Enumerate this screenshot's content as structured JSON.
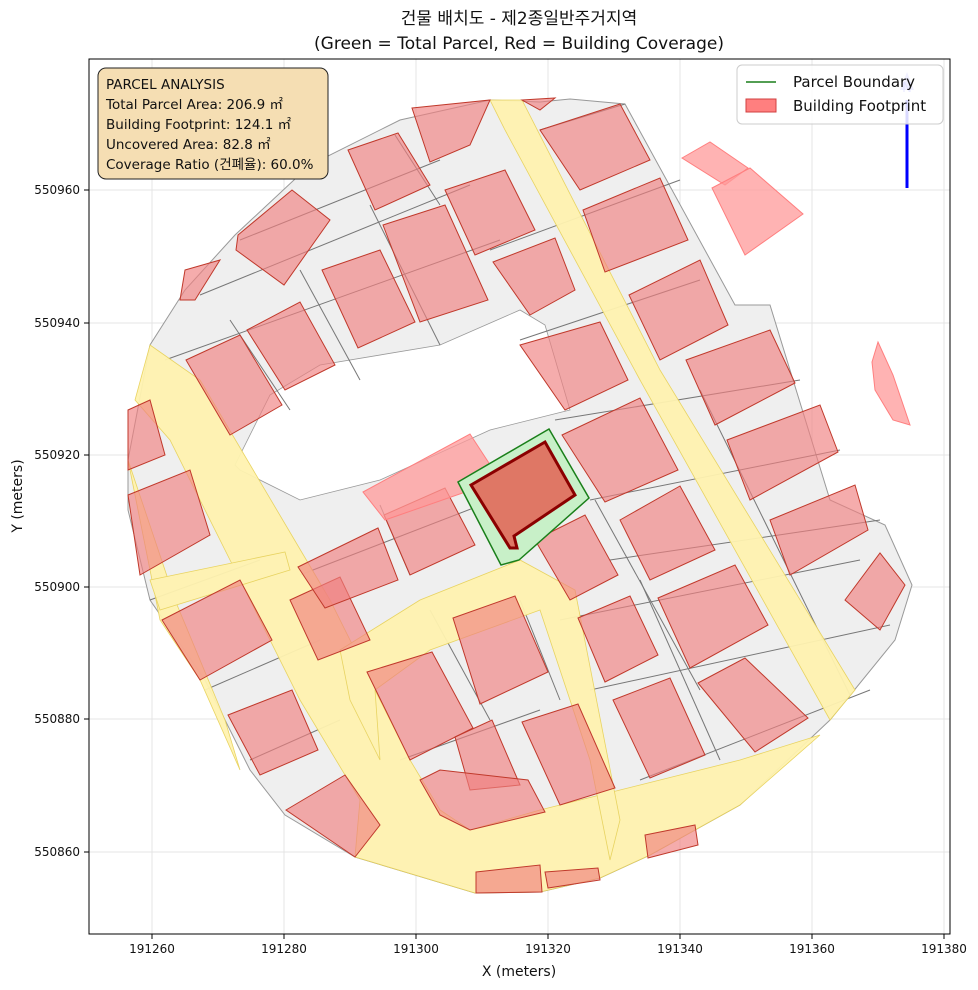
{
  "title": {
    "line1": "건물 배치도 - 제2종일반주거지역",
    "line2": "(Green = Total Parcel, Red = Building Coverage)"
  },
  "axes": {
    "xlabel": "X (meters)",
    "ylabel": "Y (meters)",
    "xlim": [
      191250,
      191380
    ],
    "ylim": [
      550847,
      550982
    ],
    "xticks": [
      "191260",
      "191280",
      "191300",
      "191320",
      "191340",
      "191360",
      "191380"
    ],
    "yticks": [
      "550860",
      "550880",
      "550900",
      "550920",
      "550940",
      "550960"
    ],
    "grid": true
  },
  "legend": {
    "placement": "top-right",
    "items": [
      {
        "label": "Parcel Boundary",
        "color": "#1a7f1a"
      },
      {
        "label": "Building Footprint",
        "color": "#ff7f7f"
      }
    ]
  },
  "info_box": {
    "heading": "PARCEL ANALYSIS",
    "total": "Total Parcel Area: 206.9 ㎡",
    "footprint": "Building Footprint: 124.1 ㎡",
    "uncovered": "Uncovered Area: 82.8 ㎡",
    "ratio": "Coverage Ratio (건폐율): 60.0%"
  },
  "north_arrow": {
    "label": "N"
  },
  "colors": {
    "parcel_fill": "#c8f0c8",
    "parcel_edge": "#1a7f1a",
    "building_fill": "#f08080",
    "building_edge": "#c0392b",
    "subject_building_fill": "#e07060",
    "subject_building_edge": "#8b0000",
    "road_fill": "#fff3b0",
    "lot_fill": "#efefef",
    "info_box_fill": "#f5deb3",
    "north_arrow": "#0000ff"
  },
  "chart_data": {
    "type": "map",
    "title": "건물 배치도 - 제2종일반주거지역 (Green = Total Parcel, Red = Building Coverage)",
    "xlabel": "X (meters)",
    "ylabel": "Y (meters)",
    "xlim": [
      191250,
      191380
    ],
    "ylim": [
      550847,
      550982
    ],
    "legend": [
      "Parcel Boundary",
      "Building Footprint"
    ],
    "subject_parcel": {
      "total_area_m2": 206.9,
      "building_footprint_m2": 124.1,
      "uncovered_area_m2": 82.8,
      "coverage_ratio_pct": 60.0,
      "polygon": [
        [
          191306,
          550916
        ],
        [
          191320,
          550924
        ],
        [
          191326,
          550913
        ],
        [
          191314,
          550905
        ],
        [
          191310,
          550904
        ]
      ]
    },
    "subject_building": {
      "polygon": [
        [
          191309,
          550915.5
        ],
        [
          191319.5,
          550922
        ],
        [
          191324,
          550914
        ],
        [
          191316,
          550908
        ],
        [
          191314,
          550906.5
        ],
        [
          191313.5,
          550908
        ],
        [
          191312.5,
          550907
        ]
      ]
    }
  }
}
